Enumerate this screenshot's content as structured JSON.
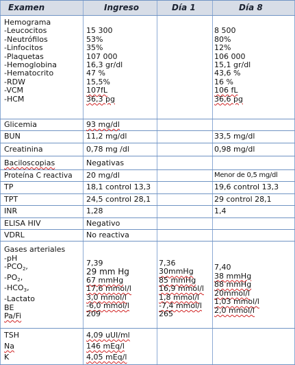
{
  "header": {
    "examen": "Examen",
    "ingreso": "Ingreso",
    "dia1": "Día 1",
    "dia8": "Día 8"
  },
  "hemograma": {
    "title": "Hemograma",
    "labels": [
      "-Leucocitos",
      "-Neutrófilos",
      "-Linfocitos",
      "-Plaquetas",
      "-Hemoglobina",
      "-Hematocrito",
      "-RDW",
      "-VCM",
      "-HCM"
    ],
    "ingreso": [
      "15 300",
      "53%",
      "35%",
      "107 000",
      "16,3 gr/dl",
      "47 %",
      "15,5%",
      "107fL",
      "36,3 pg"
    ],
    "dia8": [
      "8 500",
      "80%",
      "12%",
      "106 000",
      "15,1 gr/dl",
      "43,6 %",
      "16 %",
      "106 fL",
      "36,6 pg"
    ]
  },
  "glicemia": {
    "label": "Glicemia",
    "ingreso": "93 mg/dl"
  },
  "bun": {
    "label": "BUN",
    "ingreso": "11,2 mg/dl",
    "dia8": "33,5 mg/dl"
  },
  "creatinina": {
    "label": "Creatinina",
    "ingreso": "0,78 mg /dl",
    "dia8": "0,98 mg/dl"
  },
  "baciloscopias": {
    "label": "Baciloscopias",
    "ingreso": "Negativas"
  },
  "pcr": {
    "label": "Proteína C reactiva",
    "ingreso": "20 mg/dl",
    "dia8": "Menor de 0,5 mg/dl"
  },
  "tp": {
    "label": "TP",
    "ingreso": "18,1 control 13,3",
    "dia8": "19,6 control 13,3"
  },
  "tpt": {
    "label": "TPT",
    "ingreso": "24,5 control 28,1",
    "dia8": "29 control 28,1"
  },
  "inr": {
    "label": "INR",
    "ingreso": "1,28",
    "dia8": "1,4"
  },
  "elisa": {
    "label": "ELISA HIV",
    "ingreso": "Negativo"
  },
  "vdrl": {
    "label": "VDRL",
    "ingreso": "No reactiva"
  },
  "gases": {
    "title": "Gases arteriales",
    "labels": [
      "-pH",
      "-PCO",
      "-PO",
      "-HCO",
      "-Lactato",
      "BE",
      "Pa/Fi"
    ],
    "sub2": "2",
    "sub3": "3",
    "ingreso": [
      "7,39",
      "29 mm Hg",
      "67 mmHg",
      "17,6 mmol/l",
      "3,0 mmol/l",
      "-6,0 mmol/l",
      "209"
    ],
    "dia1": [
      "7,36",
      "30mmHg",
      "85 mmHg",
      "16,9 mmol/l",
      "1,8 mmol/l",
      "-7,4 mmol/l",
      "265"
    ],
    "dia8": [
      "7,40",
      "38 mmHg",
      "88 mmHg",
      "20mmol/l",
      "1,03 mmol/l",
      "2,0 mmol/l"
    ]
  },
  "tsh": {
    "label": "TSH",
    "ingreso": "4,09 uUI/ml"
  },
  "na": {
    "label": "Na",
    "ingreso": "146 mEq/l"
  },
  "k": {
    "label": "K",
    "ingreso": "4,05 mEq/l"
  }
}
